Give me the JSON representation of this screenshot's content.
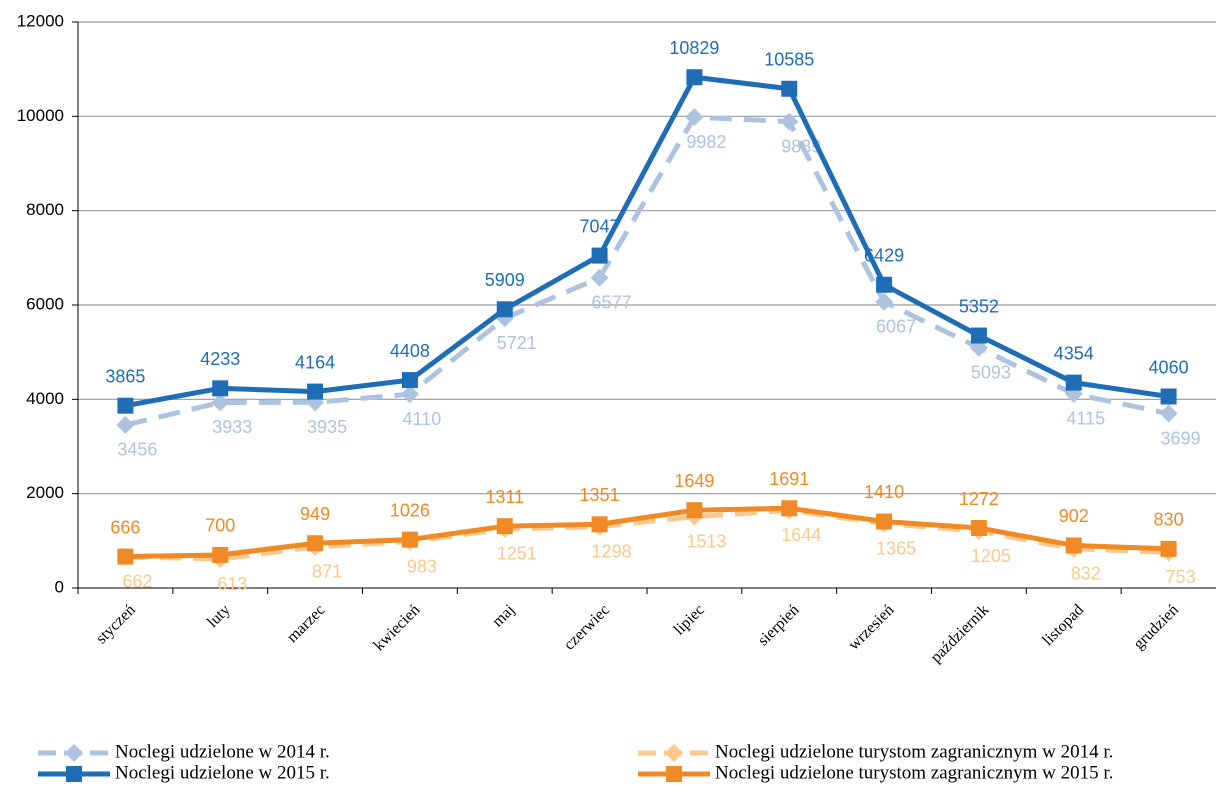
{
  "chart_data": {
    "type": "line",
    "categories": [
      "styczeń",
      "luty",
      "marzec",
      "kwiecień",
      "maj",
      "czerwiec",
      "lipiec",
      "sierpień",
      "wrzesień",
      "październik",
      "listopad",
      "grudzień"
    ],
    "series": [
      {
        "name": "Noclegi udzielone w 2014 r.",
        "color": "#aec3df",
        "dash": true,
        "marker": "diamond",
        "values": [
          3456,
          3933,
          3935,
          4110,
          5721,
          6577,
          9982,
          9889,
          6067,
          5093,
          4115,
          3699
        ]
      },
      {
        "name": "Noclegi udzielone w 2015 r.",
        "color": "#1f6db5",
        "dash": false,
        "marker": "square",
        "values": [
          3865,
          4233,
          4164,
          4408,
          5909,
          7047,
          10829,
          10585,
          6429,
          5352,
          4354,
          4060
        ]
      },
      {
        "name": "Noclegi udzielone turystom zagranicznym w 2014 r.",
        "color": "#fcc98c",
        "dash": true,
        "marker": "diamond",
        "values": [
          662,
          613,
          871,
          983,
          1251,
          1298,
          1513,
          1644,
          1365,
          1205,
          832,
          753
        ]
      },
      {
        "name": "Noclegi udzielone turystom zagranicznym w 2015 r.",
        "color": "#ef8a25",
        "dash": false,
        "marker": "square",
        "values": [
          666,
          700,
          949,
          1026,
          1311,
          1351,
          1649,
          1691,
          1410,
          1272,
          902,
          830
        ]
      }
    ],
    "ylim": [
      0,
      12000
    ],
    "yticks": [
      0,
      2000,
      4000,
      6000,
      8000,
      10000,
      12000
    ],
    "grid": true,
    "legend": "bottom"
  }
}
